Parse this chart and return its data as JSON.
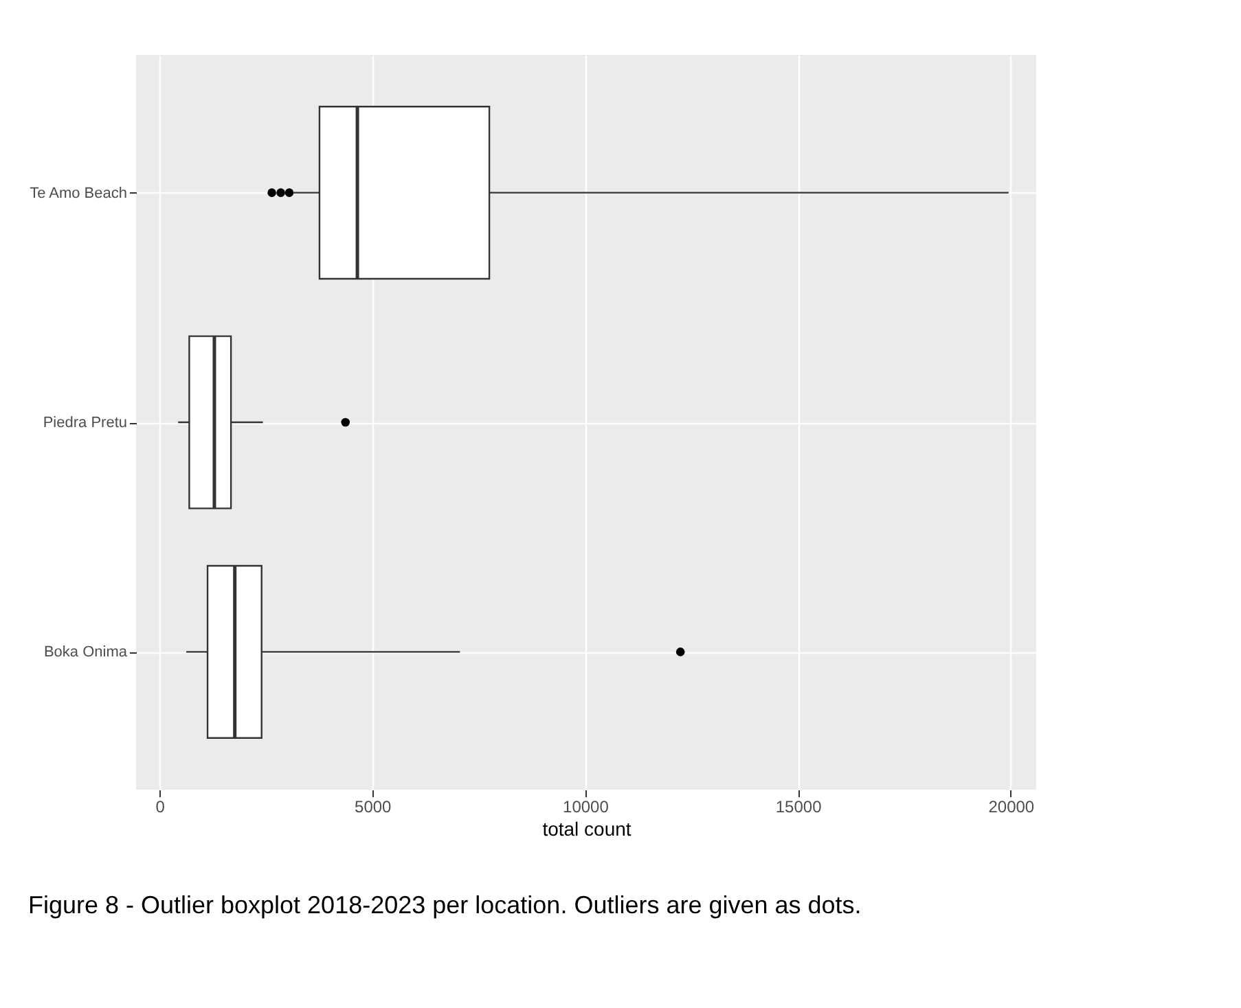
{
  "chart_data": {
    "type": "box",
    "orientation": "horizontal",
    "categories": [
      "Te Amo Beach",
      "Piedra Pretu",
      "Boka Onima"
    ],
    "boxes": [
      {
        "low": 3150,
        "q1": 3760,
        "median": 4650,
        "q3": 7750,
        "high": 19950,
        "outliers": [
          2640,
          2850,
          3050
        ]
      },
      {
        "low": 440,
        "q1": 700,
        "median": 1290,
        "q3": 1680,
        "high": 2430,
        "outliers": [
          4370
        ]
      },
      {
        "low": 630,
        "q1": 1130,
        "median": 1770,
        "q3": 2400,
        "high": 7060,
        "outliers": [
          12240
        ]
      }
    ],
    "xlim": [
      -550,
      20600
    ],
    "xticks": [
      0,
      5000,
      10000,
      15000,
      20000
    ],
    "xlabel": "total count",
    "grid": true,
    "annotations": [
      "Figure 8 - Outlier boxplot 2018-2023 per location. Outliers are given as dots."
    ]
  }
}
